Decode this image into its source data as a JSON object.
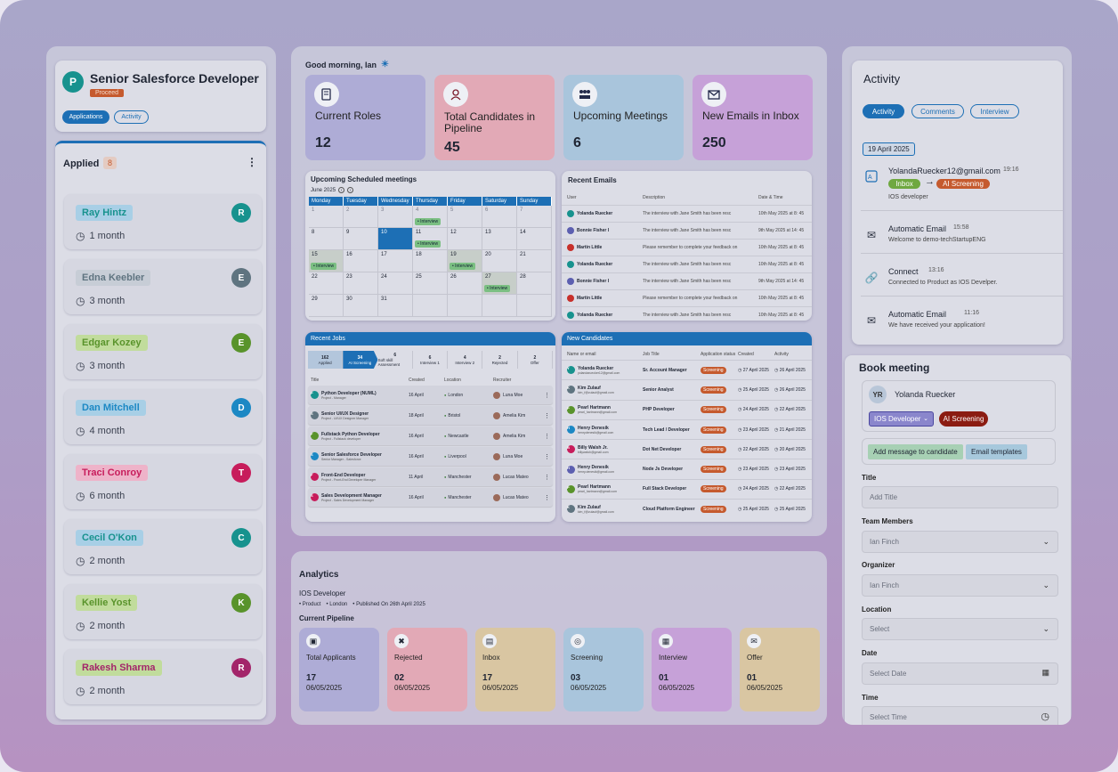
{
  "left": {
    "job_avatar": "P",
    "job_title": "Senior Salesforce Developer",
    "status": "Proceed",
    "tabs": [
      "Applications",
      "Activity"
    ],
    "column_title": "Applied",
    "column_count": "8",
    "candidates": [
      {
        "name": "Ray Hintz",
        "time": "1 month",
        "initial": "R",
        "color": "#17928e",
        "tag": "#a8cfe6"
      },
      {
        "name": "Edna Keebler",
        "time": "3 month",
        "initial": "E",
        "color": "#5f7480",
        "tag": "#c7cdd6"
      },
      {
        "name": "Edgar Kozey",
        "time": "3 month",
        "initial": "E",
        "color": "#59932b",
        "tag": "#c1dc9c"
      },
      {
        "name": "Dan Mitchell",
        "time": "4 month",
        "initial": "D",
        "color": "#1c88c4",
        "tag": "#a8cfe6"
      },
      {
        "name": "Traci Conroy",
        "time": "6 month",
        "initial": "T",
        "color": "#c71c5b",
        "tag": "#eeb3c9"
      },
      {
        "name": "Cecil O'Kon",
        "time": "2 month",
        "initial": "C",
        "color": "#17928e",
        "tag": "#a8cfe6"
      },
      {
        "name": "Kellie Yost",
        "time": "2 month",
        "initial": "K",
        "color": "#59932b",
        "tag": "#c1dc9c"
      },
      {
        "name": "Rakesh Sharma",
        "time": "2 month",
        "initial": "R",
        "color": "#a3256a",
        "tag": "#c1dc9c"
      }
    ]
  },
  "dashboard": {
    "greeting": "Good morning, Ian",
    "stats": [
      {
        "label": "Current Roles",
        "value": "12",
        "bg": "#aeacd6"
      },
      {
        "label": "Total Candidates in Pipeline",
        "value": "45",
        "bg": "#e2a9b6"
      },
      {
        "label": "Upcoming Meetings",
        "value": "6",
        "bg": "#a9c5dc"
      },
      {
        "label": "New Emails in Inbox",
        "value": "250",
        "bg": "#c6a1d8"
      }
    ],
    "meetings": {
      "title": "Upcoming Scheduled meetings",
      "month": "June 2025",
      "days": [
        "Monday",
        "Tuesday",
        "Wednesday",
        "Thursday",
        "Friday",
        "Saturday",
        "Sunday"
      ],
      "tag": "Interview",
      "weeks": [
        [
          "1",
          "2",
          "3",
          "4",
          "5",
          "6",
          "7"
        ],
        [
          "8",
          "9",
          "10",
          "11",
          "12",
          "13",
          "14"
        ],
        [
          "15",
          "16",
          "17",
          "18",
          "19",
          "20",
          "21"
        ],
        [
          "22",
          "23",
          "24",
          "25",
          "26",
          "27",
          "28"
        ],
        [
          "29",
          "30",
          "31",
          "",
          "",
          "",
          ""
        ]
      ]
    },
    "emails": {
      "title": "Recent Emails",
      "headers": [
        "User",
        "Description",
        "Date & Time"
      ],
      "rows": [
        {
          "user": "Yolanda Ruecker",
          "desc": "The interview with Jane Smith has been resc",
          "date": "10th May 2025 at 8: 45",
          "color": "#17928e"
        },
        {
          "user": "Bonnie Fisher I",
          "desc": "The interview with Jane Smith has been resc",
          "date": "9th May 2025 at 14: 45",
          "color": "#5c5fb0"
        },
        {
          "user": "Martin Little",
          "desc": "Please remember to complete your feedback on",
          "date": "10th May 2025 at 8: 45",
          "color": "#c7302b"
        },
        {
          "user": "Yolanda Ruecker",
          "desc": "The interview with Jane Smith has been resc",
          "date": "10th May 2025 at 8: 45",
          "color": "#17928e"
        },
        {
          "user": "Bonnie Fisher I",
          "desc": "The interview with Jane Smith has been resc",
          "date": "9th May 2025 at 14: 45",
          "color": "#5c5fb0"
        },
        {
          "user": "Martin Little",
          "desc": "Please remember to complete your feedback on",
          "date": "10th May 2025 at 8: 45",
          "color": "#c7302b"
        },
        {
          "user": "Yolanda Ruecker",
          "desc": "The interview with Jane Smith has been resc",
          "date": "10th May 2025 at 8: 45",
          "color": "#17928e"
        }
      ]
    },
    "jobs": {
      "title": "Recent Jobs",
      "stages": [
        {
          "count": "162",
          "label": "Applied"
        },
        {
          "count": "34",
          "label": "AI Screening"
        },
        {
          "count": "6",
          "label": "Soft skill Assessment"
        },
        {
          "count": "6",
          "label": "Interview 1"
        },
        {
          "count": "4",
          "label": "Interview 2"
        },
        {
          "count": "2",
          "label": "Rejected"
        },
        {
          "count": "2",
          "label": "Offer"
        }
      ],
      "headers": [
        "Title",
        "Created",
        "Location",
        "Recruiter"
      ],
      "rows": [
        {
          "title": "Python Developer (NUML)",
          "sub": "Project - Manager",
          "created": "16 April",
          "location": "London",
          "recruiter": "Luna Moe",
          "initial": "P",
          "color": "#17928e"
        },
        {
          "title": "Senior UI/UX Designer",
          "sub": "Project - UI/UX Designer Manager",
          "created": "18 April",
          "location": "Bristol",
          "recruiter": "Amelia Kim",
          "initial": "S",
          "color": "#5f7480"
        },
        {
          "title": "Fullstack Python Developer",
          "sub": "Project - Fullstack developer",
          "created": "16 April",
          "location": "Newcastle",
          "recruiter": "Amelia Kim",
          "initial": "F",
          "color": "#59932b"
        },
        {
          "title": "Senior Salesforce Developer",
          "sub": "Senior Manager - Salesforce",
          "created": "16 April",
          "location": "Liverpool",
          "recruiter": "Luna Moe",
          "initial": "S",
          "color": "#1c88c4"
        },
        {
          "title": "Front-End Developer",
          "sub": "Project - Front-End Developer Manager",
          "created": "11 April",
          "location": "Manchester",
          "recruiter": "Lucas Mateo",
          "initial": "F",
          "color": "#c71c5b"
        },
        {
          "title": "Sales Development Manager",
          "sub": "Project - Sales Development Manager",
          "created": "16 April",
          "location": "Manchester",
          "recruiter": "Lucas Mateo",
          "initial": "S",
          "color": "#c71c5b"
        }
      ]
    },
    "new_candidates": {
      "title": "New Candidates",
      "headers": [
        "Name or email",
        "Job Title",
        "Application status",
        "Created",
        "Activity"
      ],
      "rows": [
        {
          "name": "Yolanda Ruecker",
          "email": "yolandaruecker12@gmail.com",
          "job": "Sr. Account Manager",
          "status": "Screening",
          "created": "27 April 2025",
          "activity": "26 April 2025",
          "initial": "Y",
          "color": "#17928e"
        },
        {
          "name": "Kim Zulauf",
          "email": "kim_f@zulauf@gmail.com",
          "job": "Senior Analyst",
          "status": "Screening",
          "created": "25 April 2025",
          "activity": "26 April 2025",
          "initial": "K",
          "color": "#5f7480"
        },
        {
          "name": "Pearl Hartmann",
          "email": "pearl_hartmann@gmail.com",
          "job": "PHP Developer",
          "status": "Screening",
          "created": "24 April 2025",
          "activity": "22 April 2025",
          "initial": "P",
          "color": "#59932b"
        },
        {
          "name": "Henry Denesik",
          "email": "henrydenesik@gmail.com",
          "job": "Tech Lead / Developer",
          "status": "Screening",
          "created": "23 April 2025",
          "activity": "21 April 2025",
          "initial": "H",
          "color": "#1c88c4"
        },
        {
          "name": "Billy Walsh Jr.",
          "email": "billywalsh@gmail.com",
          "job": "Dot Net Developer",
          "status": "Screening",
          "created": "22 April 2025",
          "activity": "20 April 2025",
          "initial": "B",
          "color": "#c71c5b"
        },
        {
          "name": "Henry Denesik",
          "email": "henry.denesik@gmail.com",
          "job": "Node Js Developer",
          "status": "Screening",
          "created": "23 April 2025",
          "activity": "23 April 2025",
          "initial": "H",
          "color": "#5c5fb0"
        },
        {
          "name": "Pearl Hartmann",
          "email": "pearl_hartmann@gmail.com",
          "job": "Full Stack Developer",
          "status": "Screening",
          "created": "24 April 2025",
          "activity": "22 April 2025",
          "initial": "P",
          "color": "#59932b"
        },
        {
          "name": "Kim Zulauf",
          "email": "kim_f@zulauf@gmail.com",
          "job": "Cloud Platform Engineer",
          "status": "Screening",
          "created": "25 April 2025",
          "activity": "25 April 2025",
          "initial": "K",
          "color": "#5f7480"
        }
      ]
    }
  },
  "analytics": {
    "title": "Analytics",
    "role": "IOS Developer",
    "meta": [
      "Product",
      "London",
      "Published On 26th April 2025"
    ],
    "pipeline_title": "Current Pipeline",
    "cards": [
      {
        "label": "Total Applicants",
        "value": "17",
        "date": "06/05/2025",
        "bg": "#aeacd6"
      },
      {
        "label": "Rejected",
        "value": "02",
        "date": "06/05/2025",
        "bg": "#e2a9b6"
      },
      {
        "label": "Inbox",
        "value": "17",
        "date": "06/05/2025",
        "bg": "#d9c6a2"
      },
      {
        "label": "Screening",
        "value": "03",
        "date": "06/05/2025",
        "bg": "#a9c5dc"
      },
      {
        "label": "Interview",
        "value": "01",
        "date": "06/05/2025",
        "bg": "#c6a1d8"
      },
      {
        "label": "Offer",
        "value": "01",
        "date": "06/05/2025",
        "bg": "#d9c6a2"
      }
    ]
  },
  "activity": {
    "title": "Activity",
    "tabs": [
      "Activity",
      "Comments",
      "Interview"
    ],
    "date": "19 April 2025",
    "items": [
      {
        "title": "YolandaRuecker12@gmail.com",
        "time": "19:16",
        "from": "Inbox",
        "to": "AI Screening",
        "desc": "IOS developer"
      },
      {
        "title": "Automatic Email",
        "time": "15:58",
        "desc": "Welcome to demo-techStartupENG"
      },
      {
        "title": "Connect",
        "time": "13:16",
        "desc": "Connected to Product as IOS Develper."
      },
      {
        "title": "Automatic Email",
        "time": "11:16",
        "desc": "We have received your application!"
      }
    ]
  },
  "booking": {
    "title": "Book meeting",
    "avatar": "YR",
    "name": "Yolanda Ruecker",
    "role": "IOS Developer",
    "stage": "AI Screening",
    "add_message": "Add message to candidate",
    "email_templates": "Email templates",
    "fields": {
      "title_label": "Title",
      "title_ph": "Add Title",
      "team_label": "Team Members",
      "team_val": "Ian Finch",
      "org_label": "Organizer",
      "org_val": "Ian Finch",
      "loc_label": "Location",
      "loc_val": "Select",
      "date_label": "Date",
      "date_ph": "Select Date",
      "time_label": "Time",
      "time_ph": "Select Time"
    }
  }
}
